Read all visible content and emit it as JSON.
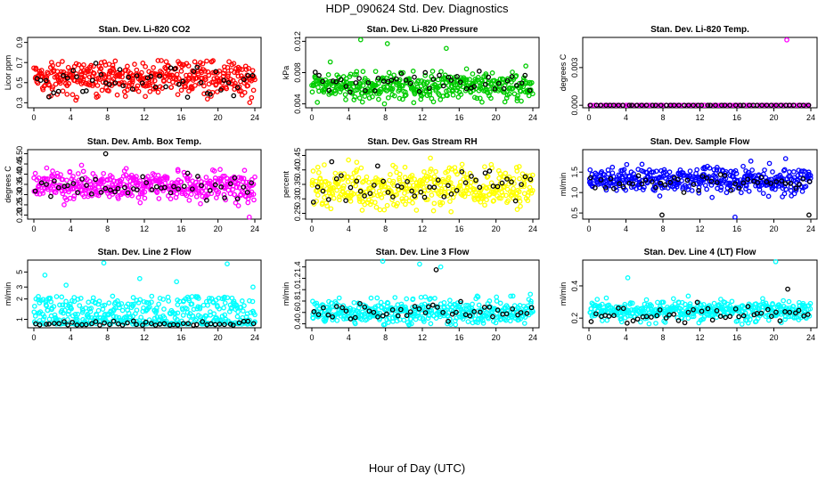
{
  "title": "HDP_090624  Std. Dev. Diagnostics",
  "xlabel": "Hour of Day (UTC)",
  "colors": {
    "red": "#ff0000",
    "green": "#00cc00",
    "magenta": "#ff00ff",
    "yellow": "#ffff00",
    "blue": "#0000ff",
    "cyan": "#00ffff",
    "overlay": "#000000",
    "axis": "#000000",
    "background": "#ffffff"
  },
  "chart_data": [
    {
      "type": "scatter",
      "title": "Stan. Dev. Li-820 CO2",
      "ylabel": "Licor ppm",
      "color": "#ff0000",
      "xlim": [
        0,
        24
      ],
      "ylim": [
        0.25,
        0.95
      ],
      "xticks": [
        "0",
        "4",
        "8",
        "12",
        "16",
        "20",
        "24"
      ],
      "yticks": [
        "0.3",
        "0.5",
        "0.7",
        "0.9"
      ],
      "ytick_values": [
        0.3,
        0.5,
        0.7,
        0.9
      ],
      "series": [
        {
          "values": {
            "count": 420,
            "center": 0.55,
            "spread": 0.12,
            "min": 0.3,
            "max": 0.72,
            "spikes": []
          }
        },
        {
          "values": {
            "count": 48,
            "center": 0.52,
            "spread": 0.1,
            "min": 0.35,
            "max": 0.7,
            "spikes": []
          }
        }
      ]
    },
    {
      "type": "scatter",
      "title": "Stan. Dev. Li-820 Pressure",
      "ylabel": "kPa",
      "color": "#00cc00",
      "xlim": [
        0,
        24
      ],
      "ylim": [
        0.0035,
        0.0125
      ],
      "xticks": [
        "0",
        "4",
        "8",
        "12",
        "16",
        "20",
        "24"
      ],
      "yticks": [
        "0.004",
        "0.008",
        "0.012"
      ],
      "ytick_values": [
        0.004,
        0.008,
        0.012
      ],
      "series": [
        {
          "values": {
            "count": 420,
            "center": 0.0063,
            "spread": 0.0012,
            "min": 0.004,
            "max": 0.0095,
            "spikes": [
              [
                5.3,
                0.0122
              ],
              [
                8.2,
                0.0117
              ],
              [
                14.6,
                0.0111
              ]
            ]
          }
        },
        {
          "values": {
            "count": 48,
            "center": 0.0068,
            "spread": 0.0009,
            "min": 0.0055,
            "max": 0.0095,
            "spikes": []
          }
        }
      ]
    },
    {
      "type": "scatter",
      "title": "Stan. Dev. Li-820 Temp.",
      "ylabel": "degrees C",
      "color": "#ff00ff",
      "xlim": [
        0,
        24
      ],
      "ylim": [
        -0.0002,
        0.0054
      ],
      "xticks": [
        "0",
        "4",
        "8",
        "12",
        "16",
        "20",
        "24"
      ],
      "yticks": [
        "0.000",
        "0.003"
      ],
      "ytick_values": [
        0,
        0.003
      ],
      "series": [
        {
          "values": {
            "count": 96,
            "center": 0,
            "spread": 0,
            "min": 0,
            "max": 0,
            "spikes": [
              [
                21.4,
                0.0052
              ]
            ]
          }
        },
        {
          "values": {
            "count": 48,
            "center": 0,
            "spread": 0,
            "min": 0,
            "max": 0,
            "spikes": []
          }
        }
      ]
    },
    {
      "type": "scatter",
      "title": "Stan. Dev. Amb. Box Temp.",
      "ylabel": "degrees C",
      "color": "#ff00ff",
      "xlim": [
        0,
        24
      ],
      "ylim": [
        0.18,
        0.52
      ],
      "xticks": [
        "0",
        "4",
        "8",
        "12",
        "16",
        "20",
        "24"
      ],
      "yticks": [
        "0.20",
        "0.25",
        "0.30",
        "0.35",
        "0.40",
        "0.45",
        "0.50"
      ],
      "ytick_values": [
        0.2,
        0.25,
        0.3,
        0.35,
        0.4,
        0.45,
        0.5
      ],
      "series": [
        {
          "values": {
            "count": 420,
            "center": 0.345,
            "spread": 0.045,
            "min": 0.22,
            "max": 0.46,
            "spikes": [
              [
                23.4,
                0.19
              ]
            ]
          }
        },
        {
          "values": {
            "count": 48,
            "center": 0.34,
            "spread": 0.04,
            "min": 0.27,
            "max": 0.42,
            "spikes": [
              [
                7.8,
                0.5
              ]
            ]
          }
        }
      ]
    },
    {
      "type": "scatter",
      "title": "Stan. Dev. Gas Stream RH",
      "ylabel": "percent",
      "color": "#ffff00",
      "xlim": [
        0,
        24
      ],
      "ylim": [
        0.23,
        0.47
      ],
      "xticks": [
        "0",
        "4",
        "8",
        "12",
        "16",
        "20",
        "24"
      ],
      "yticks": [
        "0.25",
        "0.30",
        "0.35",
        "0.40",
        "0.45"
      ],
      "ytick_values": [
        0.25,
        0.3,
        0.35,
        0.4,
        0.45
      ],
      "series": [
        {
          "values": {
            "count": 420,
            "center": 0.34,
            "spread": 0.045,
            "min": 0.25,
            "max": 0.46,
            "spikes": []
          }
        },
        {
          "values": {
            "count": 48,
            "center": 0.34,
            "spread": 0.04,
            "min": 0.26,
            "max": 0.43,
            "spikes": []
          }
        }
      ]
    },
    {
      "type": "scatter",
      "title": "Stan. Dev. Sample Flow",
      "ylabel": "ml/min",
      "color": "#0000ff",
      "xlim": [
        0,
        24
      ],
      "ylim": [
        0.35,
        2.05
      ],
      "xticks": [
        "0",
        "4",
        "8",
        "12",
        "16",
        "20",
        "24"
      ],
      "yticks": [
        "0.5",
        "1.0",
        "1.5"
      ],
      "ytick_values": [
        0.5,
        1,
        1.5
      ],
      "series": [
        {
          "values": {
            "count": 420,
            "center": 1.3,
            "spread": 0.2,
            "min": 0.6,
            "max": 1.9,
            "spikes": [
              [
                15.8,
                0.4
              ]
            ]
          }
        },
        {
          "values": {
            "count": 48,
            "center": 1.25,
            "spread": 0.15,
            "min": 0.9,
            "max": 1.5,
            "spikes": [
              [
                7.9,
                0.45
              ],
              [
                23.8,
                0.45
              ]
            ]
          }
        }
      ]
    },
    {
      "type": "scatter",
      "title": "Stan. Dev. Line 2 Flow",
      "ylabel": "ml/min",
      "color": "#00ffff",
      "xlim": [
        0,
        24
      ],
      "ylim": [
        0.75,
        7.5
      ],
      "log_y": true,
      "xticks": [
        "0",
        "4",
        "8",
        "12",
        "16",
        "20",
        "24"
      ],
      "yticks": [
        "1",
        "2",
        "3",
        "5"
      ],
      "ytick_values": [
        1,
        2,
        3,
        5
      ],
      "series": [
        {
          "values": {
            "count": 420,
            "center": 1.1,
            "spread": 0.3,
            "min": 0.85,
            "max": 2.2,
            "spikes": [
              [
                7.6,
                6.8
              ],
              [
                21.0,
                6.6
              ],
              [
                1.2,
                4.5
              ],
              [
                11.5,
                4
              ],
              [
                15.5,
                3.6
              ],
              [
                3.5,
                3.2
              ],
              [
                23.8,
                3.0
              ]
            ]
          }
        },
        {
          "values": {
            "count": 48,
            "center": 0.87,
            "spread": 0.03,
            "min": 0.82,
            "max": 0.95,
            "spikes": []
          }
        }
      ]
    },
    {
      "type": "scatter",
      "title": "Stan. Dev. Line 3 Flow",
      "ylabel": "ml/min",
      "color": "#00ffff",
      "xlim": [
        0,
        24
      ],
      "ylim": [
        0.33,
        1.52
      ],
      "xticks": [
        "0",
        "4",
        "8",
        "12",
        "16",
        "20",
        "24"
      ],
      "yticks": [
        "0.4",
        "0.6",
        "0.8",
        "1.0",
        "1.2",
        "1.4"
      ],
      "ytick_values": [
        0.4,
        0.6,
        0.8,
        1,
        1.2,
        1.4
      ],
      "series": [
        {
          "values": {
            "count": 420,
            "center": 0.62,
            "spread": 0.14,
            "min": 0.38,
            "max": 1.2,
            "spikes": [
              [
                7.7,
                1.5
              ],
              [
                11.7,
                1.45
              ],
              [
                14.0,
                1.4
              ]
            ]
          }
        },
        {
          "values": {
            "count": 48,
            "center": 0.62,
            "spread": 0.12,
            "min": 0.4,
            "max": 1.0,
            "spikes": [
              [
                13.5,
                1.35
              ]
            ]
          }
        }
      ]
    },
    {
      "type": "scatter",
      "title": "Stan. Dev. Line 4 (LT) Flow",
      "ylabel": "ml/min",
      "color": "#00ffff",
      "xlim": [
        0,
        24
      ],
      "ylim": [
        0.14,
        0.56
      ],
      "xticks": [
        "0",
        "4",
        "8",
        "12",
        "16",
        "20",
        "24"
      ],
      "yticks": [
        "0.2",
        "0.4"
      ],
      "ytick_values": [
        0.2,
        0.4
      ],
      "series": [
        {
          "values": {
            "count": 420,
            "center": 0.245,
            "spread": 0.04,
            "min": 0.16,
            "max": 0.38,
            "spikes": [
              [
                20.2,
                0.55
              ],
              [
                4.2,
                0.45
              ]
            ]
          }
        },
        {
          "values": {
            "count": 48,
            "center": 0.23,
            "spread": 0.035,
            "min": 0.16,
            "max": 0.35,
            "spikes": [
              [
                21.5,
                0.38
              ]
            ]
          }
        }
      ]
    }
  ]
}
